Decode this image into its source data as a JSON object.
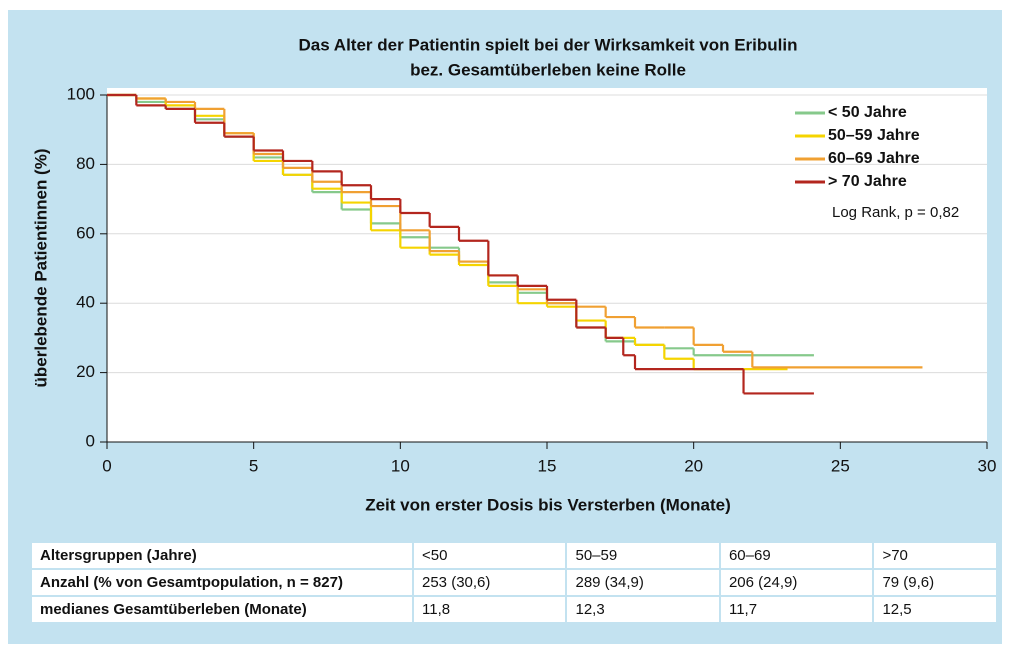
{
  "chart_data": {
    "type": "step",
    "title": "Das Alter der Patientin spielt bei der Wirksamkeit von Eribulin",
    "subtitle": "bez. Gesamtüberleben keine Rolle",
    "x_label": "Zeit von erster Dosis bis Versterben (Monate)",
    "y_label": "überlebende Patientinnen (%)",
    "annotation": "Log Rank, p = 0,82",
    "xlim": [
      0,
      30
    ],
    "xticks": [
      0,
      5,
      10,
      15,
      20,
      25,
      30
    ],
    "ylim": [
      0,
      100
    ],
    "yticks": [
      0,
      20,
      40,
      60,
      80,
      100
    ],
    "grid": true,
    "legend": "upper right",
    "series": [
      {
        "name": "< 50 Jahre",
        "color": "#86c98b",
        "x": [
          0,
          1,
          2,
          3,
          4,
          5,
          6,
          7,
          8,
          9,
          10,
          11,
          12,
          13,
          14,
          15,
          16,
          17,
          18,
          19,
          20,
          24.1
        ],
        "values": [
          100,
          98,
          96,
          93,
          88,
          82,
          77,
          72,
          67,
          63,
          59,
          56,
          52,
          46,
          43,
          40,
          33,
          29,
          28,
          27,
          25,
          25
        ]
      },
      {
        "name": "50–59 Jahre",
        "color": "#f5d400",
        "x": [
          0,
          1,
          2,
          3,
          4,
          5,
          6,
          7,
          8,
          9,
          10,
          11,
          12,
          13,
          14,
          15,
          16,
          17,
          18,
          19,
          20,
          23.2
        ],
        "values": [
          100,
          99,
          97,
          94,
          89,
          81,
          77,
          73,
          69,
          61,
          56,
          54,
          51,
          45,
          40,
          39,
          35,
          30,
          28,
          24,
          21,
          21
        ]
      },
      {
        "name": "60–69 Jahre",
        "color": "#f0a032",
        "x": [
          0,
          1,
          2,
          3,
          4,
          5,
          6,
          7,
          8,
          9,
          10,
          11,
          12,
          13,
          14,
          15,
          16,
          17,
          18,
          19,
          20,
          21,
          22,
          27.8
        ],
        "values": [
          100,
          99,
          98,
          96,
          89,
          83,
          79,
          75,
          72,
          68,
          61,
          55,
          52,
          48,
          44,
          40,
          39,
          36,
          33,
          33,
          28,
          26,
          21.5,
          21.5
        ]
      },
      {
        "name": "> 70 Jahre",
        "color": "#b3261e",
        "x": [
          0,
          1,
          2,
          3,
          4,
          5,
          6,
          7,
          8,
          9,
          10,
          11,
          12,
          13,
          14,
          15,
          16,
          17,
          17.6,
          18,
          21.7,
          24.1
        ],
        "values": [
          100,
          97,
          96,
          92,
          88,
          84,
          81,
          78,
          74,
          70,
          66,
          62,
          58,
          48,
          45,
          41,
          33,
          30,
          25,
          21,
          14,
          14
        ]
      }
    ]
  },
  "table": {
    "rows": [
      [
        "Altersgruppen (Jahre)",
        "<50",
        "50–59",
        "60–69",
        ">70"
      ],
      [
        "Anzahl (% von Gesamtpopulation, n = 827)",
        "253 (30,6)",
        "289 (34,9)",
        "206 (24,9)",
        "79 (9,6)"
      ],
      [
        "medianes Gesamtüberleben (Monate)",
        "11,8",
        "12,3",
        "11,7",
        "12,5"
      ]
    ]
  }
}
